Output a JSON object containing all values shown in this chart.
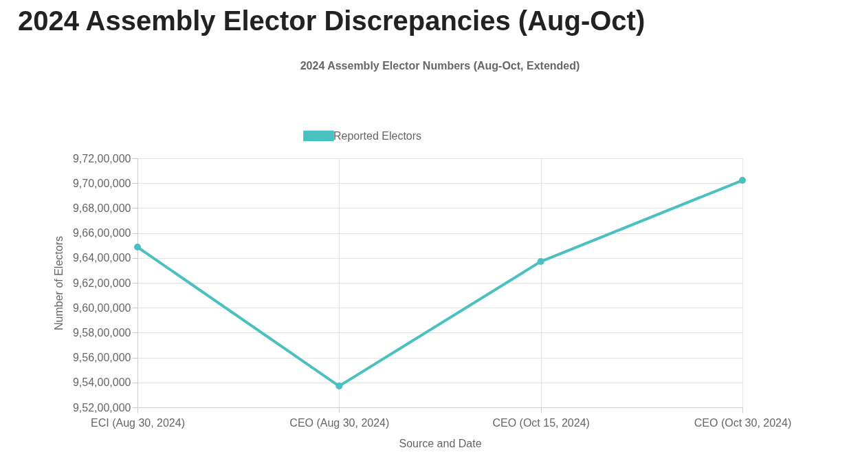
{
  "chart_data": {
    "type": "line",
    "title": "2024 Assembly Elector Discrepancies (Aug-Oct)",
    "subtitle": "2024 Assembly Elector Numbers (Aug-Oct, Extended)",
    "xlabel": "Source and Date",
    "ylabel": "Number of Electors",
    "categories": [
      "ECI (Aug 30, 2024)",
      "CEO (Aug 30, 2024)",
      "CEO (Oct 15, 2024)",
      "CEO (Oct 30, 2024)"
    ],
    "series": [
      {
        "name": "Reported Electors",
        "color": "#4bc0c0",
        "values": [
          96487000,
          95371000,
          96371000,
          97023000
        ]
      }
    ],
    "ylim": [
      95200000,
      97200000
    ],
    "yticks": [
      {
        "value": 95200000,
        "label": "9,52,00,000"
      },
      {
        "value": 95400000,
        "label": "9,54,00,000"
      },
      {
        "value": 95600000,
        "label": "9,56,00,000"
      },
      {
        "value": 95800000,
        "label": "9,58,00,000"
      },
      {
        "value": 96000000,
        "label": "9,60,00,000"
      },
      {
        "value": 96200000,
        "label": "9,62,00,000"
      },
      {
        "value": 96400000,
        "label": "9,64,00,000"
      },
      {
        "value": 96600000,
        "label": "9,66,00,000"
      },
      {
        "value": 96800000,
        "label": "9,68,00,000"
      },
      {
        "value": 97000000,
        "label": "9,70,00,000"
      },
      {
        "value": 97200000,
        "label": "9,72,00,000"
      }
    ],
    "grid": true,
    "legend": "top",
    "marker": "circle",
    "line_style": "solid"
  }
}
